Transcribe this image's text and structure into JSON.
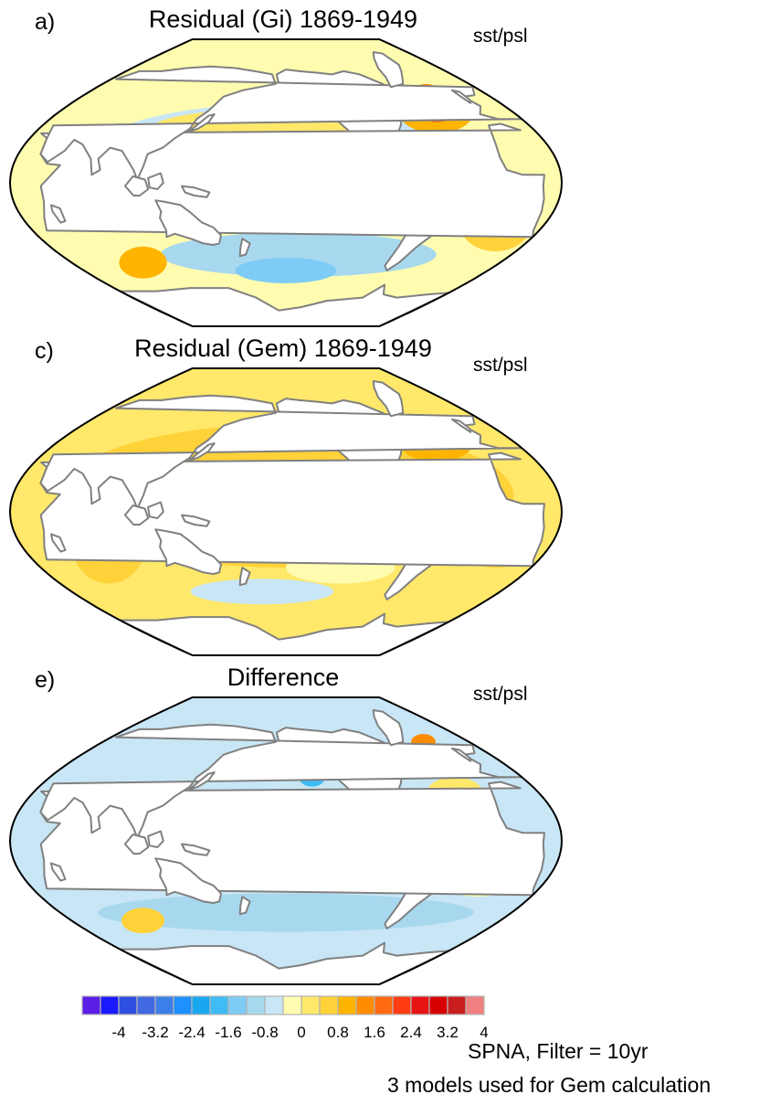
{
  "panels": [
    {
      "letter": "a)",
      "title": "Residual (Gi) 1869-1949",
      "variable": "sst/psl",
      "pattern": "gi"
    },
    {
      "letter": "c)",
      "title": "Residual (Gem) 1869-1949",
      "variable": "sst/psl",
      "pattern": "gem"
    },
    {
      "letter": "e)",
      "title": "Difference",
      "variable": "sst/psl",
      "pattern": "diff"
    }
  ],
  "colorbar": {
    "colors": [
      "#5a1ee6",
      "#1a1aff",
      "#2f4fe0",
      "#4169e1",
      "#3c7fe8",
      "#1e90ff",
      "#19a7f0",
      "#3fbcf5",
      "#7ecbf5",
      "#a8d8ee",
      "#c8e6f5",
      "#fffcb0",
      "#ffe86a",
      "#ffd23a",
      "#ffb400",
      "#ff8c00",
      "#ff6a10",
      "#ff3c14",
      "#e81414",
      "#d70000",
      "#c81e1e",
      "#f08080"
    ],
    "labels": [
      "-4",
      "-3.2",
      "-2.4",
      "-1.6",
      "-0.8",
      "0",
      "0.8",
      "1.6",
      "2.4",
      "3.2",
      "4"
    ]
  },
  "footer": {
    "line1": "SPNA, Filter = 10yr",
    "line2": "3 models used for Gem calculation"
  },
  "colors": {
    "land": "#ffffff",
    "coast": "#808080",
    "border": "#000000"
  }
}
